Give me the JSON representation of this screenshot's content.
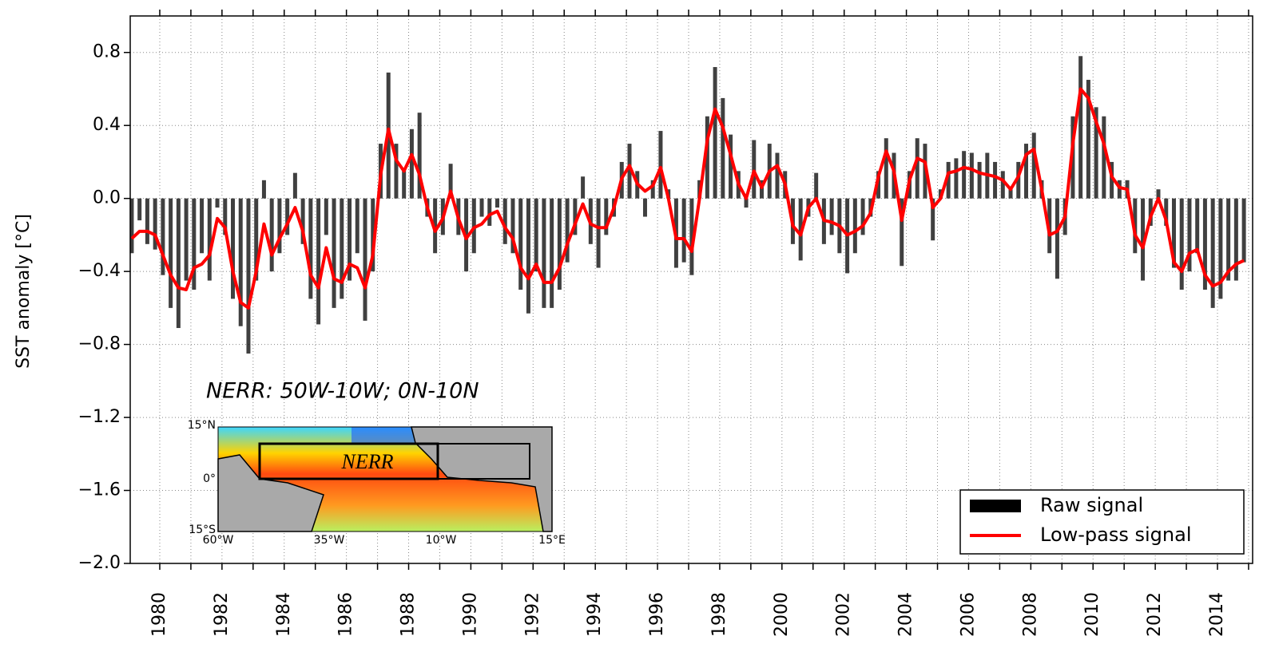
{
  "chart_data": {
    "type": "bar",
    "ylabel": "SST anomaly [°C]",
    "annotation": "NERR: 50W-10W; 0N-10N",
    "inset": {
      "box_label": "NERR",
      "lat_labels": [
        "15°N",
        "0°",
        "15°S"
      ],
      "lon_labels": [
        "60°W",
        "35°W",
        "10°W",
        "15°E"
      ]
    },
    "xlim": [
      1979.05,
      2015.13
    ],
    "xticks": [
      1980,
      1982,
      1984,
      1986,
      1988,
      1990,
      1992,
      1994,
      1996,
      1998,
      2000,
      2002,
      2004,
      2006,
      2008,
      2010,
      2012,
      2014
    ],
    "xminor_ticks": [
      1981,
      1983,
      1985,
      1987,
      1989,
      1991,
      1993,
      1995,
      1997,
      1999,
      2001,
      2003,
      2005,
      2007,
      2009,
      2011,
      2013,
      2015
    ],
    "ylim": [
      -2.0,
      1.0
    ],
    "yticks": [
      {
        "value": -2.0,
        "label": "−2.0"
      },
      {
        "value": -1.6,
        "label": "−1.6"
      },
      {
        "value": -1.2,
        "label": "−1.2"
      },
      {
        "value": -0.8,
        "label": "−0.8"
      },
      {
        "value": -0.4,
        "label": "−0.4"
      },
      {
        "value": 0.0,
        "label": "0.0"
      },
      0.4,
      0.8
    ],
    "grid": true,
    "legend": "lower right",
    "x": [
      1979.1,
      1979.35,
      1979.6,
      1979.85,
      1980.1,
      1980.35,
      1980.6,
      1980.85,
      1981.1,
      1981.35,
      1981.6,
      1981.85,
      1982.1,
      1982.35,
      1982.6,
      1982.85,
      1983.1,
      1983.35,
      1983.6,
      1983.85,
      1984.1,
      1984.35,
      1984.6,
      1984.85,
      1985.1,
      1985.35,
      1985.6,
      1985.85,
      1986.1,
      1986.35,
      1986.6,
      1986.85,
      1987.1,
      1987.35,
      1987.6,
      1987.85,
      1988.1,
      1988.35,
      1988.6,
      1988.85,
      1989.1,
      1989.35,
      1989.6,
      1989.85,
      1990.1,
      1990.35,
      1990.6,
      1990.85,
      1991.1,
      1991.35,
      1991.6,
      1991.85,
      1992.1,
      1992.35,
      1992.6,
      1992.85,
      1993.1,
      1993.35,
      1993.6,
      1993.85,
      1994.1,
      1994.35,
      1994.6,
      1994.85,
      1995.1,
      1995.35,
      1995.6,
      1995.85,
      1996.1,
      1996.35,
      1996.6,
      1996.85,
      1997.1,
      1997.35,
      1997.6,
      1997.85,
      1998.1,
      1998.35,
      1998.6,
      1998.85,
      1999.1,
      1999.35,
      1999.6,
      1999.85,
      2000.1,
      2000.35,
      2000.6,
      2000.85,
      2001.1,
      2001.35,
      2001.6,
      2001.85,
      2002.1,
      2002.35,
      2002.6,
      2002.85,
      2003.1,
      2003.35,
      2003.6,
      2003.85,
      2004.1,
      2004.35,
      2004.6,
      2004.85,
      2005.1,
      2005.35,
      2005.6,
      2005.85,
      2006.1,
      2006.35,
      2006.6,
      2006.85,
      2007.1,
      2007.35,
      2007.6,
      2007.85,
      2008.1,
      2008.35,
      2008.6,
      2008.85,
      2009.1,
      2009.35,
      2009.6,
      2009.85,
      2010.1,
      2010.35,
      2010.6,
      2010.85,
      2011.1,
      2011.35,
      2011.6,
      2011.85,
      2012.1,
      2012.35,
      2012.6,
      2012.85,
      2013.1,
      2013.35,
      2013.6,
      2013.85,
      2014.1,
      2014.35,
      2014.6,
      2014.85
    ],
    "series": [
      {
        "name": "Raw signal",
        "type": "bar",
        "color": "#000000",
        "values": [
          -0.3,
          -0.12,
          -0.25,
          -0.28,
          -0.42,
          -0.6,
          -0.71,
          -0.45,
          -0.5,
          -0.3,
          -0.45,
          -0.05,
          -0.2,
          -0.55,
          -0.7,
          -0.85,
          -0.45,
          0.1,
          -0.4,
          -0.3,
          -0.2,
          0.14,
          -0.25,
          -0.55,
          -0.69,
          -0.2,
          -0.6,
          -0.55,
          -0.45,
          -0.3,
          -0.67,
          -0.4,
          0.3,
          0.69,
          0.3,
          0.15,
          0.38,
          0.47,
          -0.1,
          -0.3,
          -0.2,
          0.19,
          -0.2,
          -0.4,
          -0.3,
          -0.1,
          -0.15,
          -0.05,
          -0.25,
          -0.3,
          -0.5,
          -0.63,
          -0.4,
          -0.6,
          -0.6,
          -0.5,
          -0.35,
          -0.2,
          0.12,
          -0.25,
          -0.38,
          -0.2,
          -0.1,
          0.2,
          0.3,
          0.15,
          -0.1,
          0.1,
          0.37,
          0.05,
          -0.38,
          -0.35,
          -0.42,
          0.1,
          0.45,
          0.72,
          0.55,
          0.35,
          0.15,
          -0.05,
          0.32,
          0.1,
          0.3,
          0.25,
          0.15,
          -0.25,
          -0.34,
          -0.1,
          0.14,
          -0.25,
          -0.2,
          -0.3,
          -0.41,
          -0.3,
          -0.2,
          -0.1,
          0.15,
          0.33,
          0.25,
          -0.37,
          0.15,
          0.33,
          0.3,
          -0.23,
          0.05,
          0.2,
          0.22,
          0.26,
          0.25,
          0.2,
          0.25,
          0.2,
          0.15,
          0.05,
          0.2,
          0.3,
          0.36,
          0.1,
          -0.3,
          -0.44,
          -0.2,
          0.45,
          0.78,
          0.65,
          0.5,
          0.45,
          0.2,
          0.1,
          0.1,
          -0.3,
          -0.45,
          -0.15,
          0.05,
          -0.15,
          -0.38,
          -0.5,
          -0.4,
          -0.3,
          -0.5,
          -0.6,
          -0.55,
          -0.45,
          -0.45,
          -0.35
        ]
      },
      {
        "name": "Low-pass signal",
        "type": "line",
        "color": "#ff0000",
        "values": [
          -0.22,
          -0.18,
          -0.18,
          -0.2,
          -0.31,
          -0.42,
          -0.49,
          -0.5,
          -0.38,
          -0.36,
          -0.31,
          -0.11,
          -0.16,
          -0.4,
          -0.57,
          -0.6,
          -0.4,
          -0.14,
          -0.31,
          -0.22,
          -0.14,
          -0.05,
          -0.18,
          -0.42,
          -0.49,
          -0.27,
          -0.44,
          -0.46,
          -0.36,
          -0.38,
          -0.49,
          -0.31,
          0.13,
          0.38,
          0.21,
          0.15,
          0.24,
          0.13,
          -0.05,
          -0.18,
          -0.11,
          0.04,
          -0.11,
          -0.22,
          -0.16,
          -0.14,
          -0.09,
          -0.07,
          -0.16,
          -0.22,
          -0.38,
          -0.44,
          -0.36,
          -0.46,
          -0.46,
          -0.38,
          -0.25,
          -0.14,
          -0.03,
          -0.14,
          -0.16,
          -0.16,
          -0.05,
          0.11,
          0.18,
          0.08,
          0.04,
          0.07,
          0.17,
          0,
          -0.22,
          -0.22,
          -0.29,
          0,
          0.32,
          0.49,
          0.39,
          0.24,
          0.08,
          0,
          0.15,
          0.06,
          0.15,
          0.18,
          0.08,
          -0.15,
          -0.2,
          -0.05,
          0,
          -0.12,
          -0.13,
          -0.15,
          -0.2,
          -0.18,
          -0.15,
          -0.08,
          0.12,
          0.26,
          0.15,
          -0.12,
          0.1,
          0.22,
          0.2,
          -0.05,
          0,
          0.14,
          0.15,
          0.17,
          0.16,
          0.14,
          0.13,
          0.12,
          0.1,
          0.05,
          0.12,
          0.24,
          0.27,
          0.05,
          -0.2,
          -0.18,
          -0.1,
          0.3,
          0.6,
          0.55,
          0.42,
          0.3,
          0.12,
          0.06,
          0.05,
          -0.2,
          -0.27,
          -0.1,
          0,
          -0.12,
          -0.35,
          -0.4,
          -0.3,
          -0.28,
          -0.42,
          -0.48,
          -0.46,
          -0.4,
          -0.36,
          -0.34
        ]
      }
    ]
  }
}
